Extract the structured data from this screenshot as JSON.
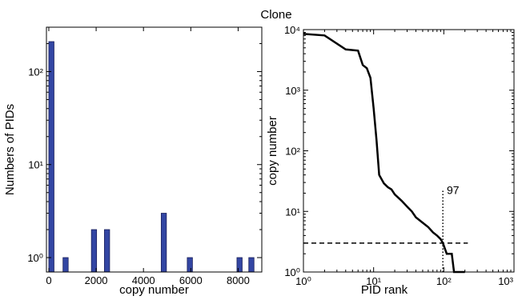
{
  "suptitle": "Clone",
  "chart_data": [
    {
      "type": "bar",
      "xlabel": "copy number",
      "ylabel": "Numbers of PIDs",
      "yscale": "log",
      "xlim": [
        -100,
        9000
      ],
      "ylim": [
        0.7,
        300
      ],
      "bar_color": "#3346a3",
      "bar_width": 220,
      "x": [
        0,
        600,
        1800,
        2350,
        4750,
        5850,
        7950,
        8450
      ],
      "values": [
        210,
        1,
        2,
        2,
        3,
        1,
        1,
        1
      ],
      "xticks": [
        0,
        2000,
        4000,
        6000,
        8000
      ],
      "xtick_labels": [
        "0",
        "2000",
        "4000",
        "6000",
        "8000"
      ],
      "yticks": [
        1,
        10,
        100
      ],
      "ytick_labels": [
        "10⁰",
        "10¹",
        "10²"
      ],
      "grid": false
    },
    {
      "type": "line",
      "xlabel": "PID rank",
      "ylabel": "copy number",
      "xscale": "log",
      "yscale": "log",
      "xlim": [
        1,
        1000
      ],
      "ylim": [
        1,
        10000
      ],
      "line_color": "#000000",
      "series": [
        {
          "x": [
            1,
            2,
            4,
            6,
            7,
            8,
            9,
            10,
            11,
            12,
            14,
            16,
            18,
            20,
            25,
            30,
            35,
            40,
            50,
            60,
            70,
            80,
            90,
            97,
            110,
            130,
            140,
            200
          ],
          "values": [
            8500,
            8000,
            4700,
            4500,
            2600,
            2300,
            1600,
            500,
            150,
            40,
            29,
            25,
            23,
            19,
            15,
            12,
            10,
            8,
            6.5,
            5.5,
            4.5,
            4,
            3.5,
            3,
            2,
            2,
            1,
            1
          ]
        }
      ],
      "hline": {
        "y": 3,
        "x_range": [
          1,
          220
        ],
        "style": "dashed"
      },
      "vline": {
        "x": 97,
        "y_range": [
          1,
          22
        ],
        "style": "dotted"
      },
      "annotation": {
        "text": "97",
        "x": 110,
        "y": 22
      },
      "xticks": [
        1,
        10,
        100,
        1000
      ],
      "xtick_labels": [
        "10⁰",
        "10¹",
        "10²",
        "10³"
      ],
      "yticks": [
        1,
        10,
        100,
        1000,
        10000
      ],
      "ytick_labels": [
        "10⁰",
        "10¹",
        "10²",
        "10³",
        "10⁴"
      ],
      "grid": false
    }
  ]
}
